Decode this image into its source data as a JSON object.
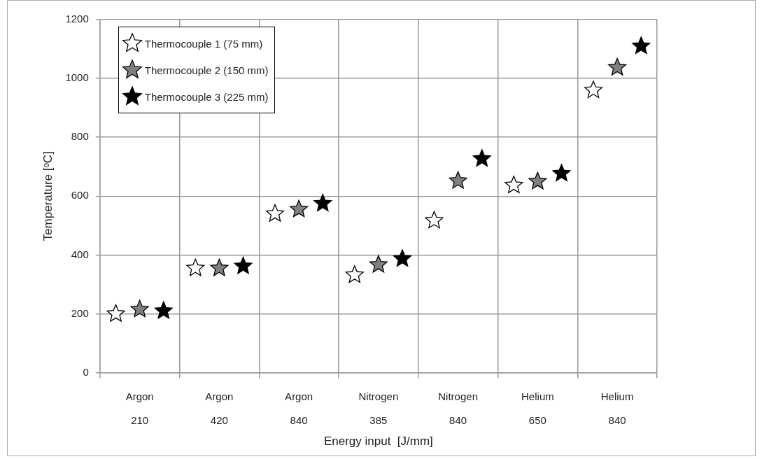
{
  "chart_data": {
    "type": "scatter",
    "xlabel": "Energy input  [J/mm]",
    "ylabel": "Temperature [ᵒC]",
    "categories": [
      "Argon\n210",
      "Argon\n420",
      "Argon\n840",
      "Nitrogen\n385",
      "Nitrogen\n840",
      "Helium\n650",
      "Helium\n840"
    ],
    "series": [
      {
        "name": "Thermocouple 1 (75 mm)",
        "color": "#ffffff",
        "values": [
          200,
          355,
          540,
          332,
          517,
          637,
          960
        ]
      },
      {
        "name": "Thermocouple 2 (150 mm)",
        "color": "#808080",
        "values": [
          215,
          355,
          555,
          367,
          652,
          650,
          1037
        ]
      },
      {
        "name": "Thermocouple 3 (225 mm)",
        "color": "#000000",
        "values": [
          210,
          362,
          575,
          387,
          727,
          677,
          1110
        ]
      }
    ],
    "ylim": [
      0,
      1200
    ],
    "yticks": [
      0,
      200,
      400,
      600,
      800,
      1000,
      1200
    ],
    "grid": true,
    "legend": "top left",
    "marker": "star"
  }
}
